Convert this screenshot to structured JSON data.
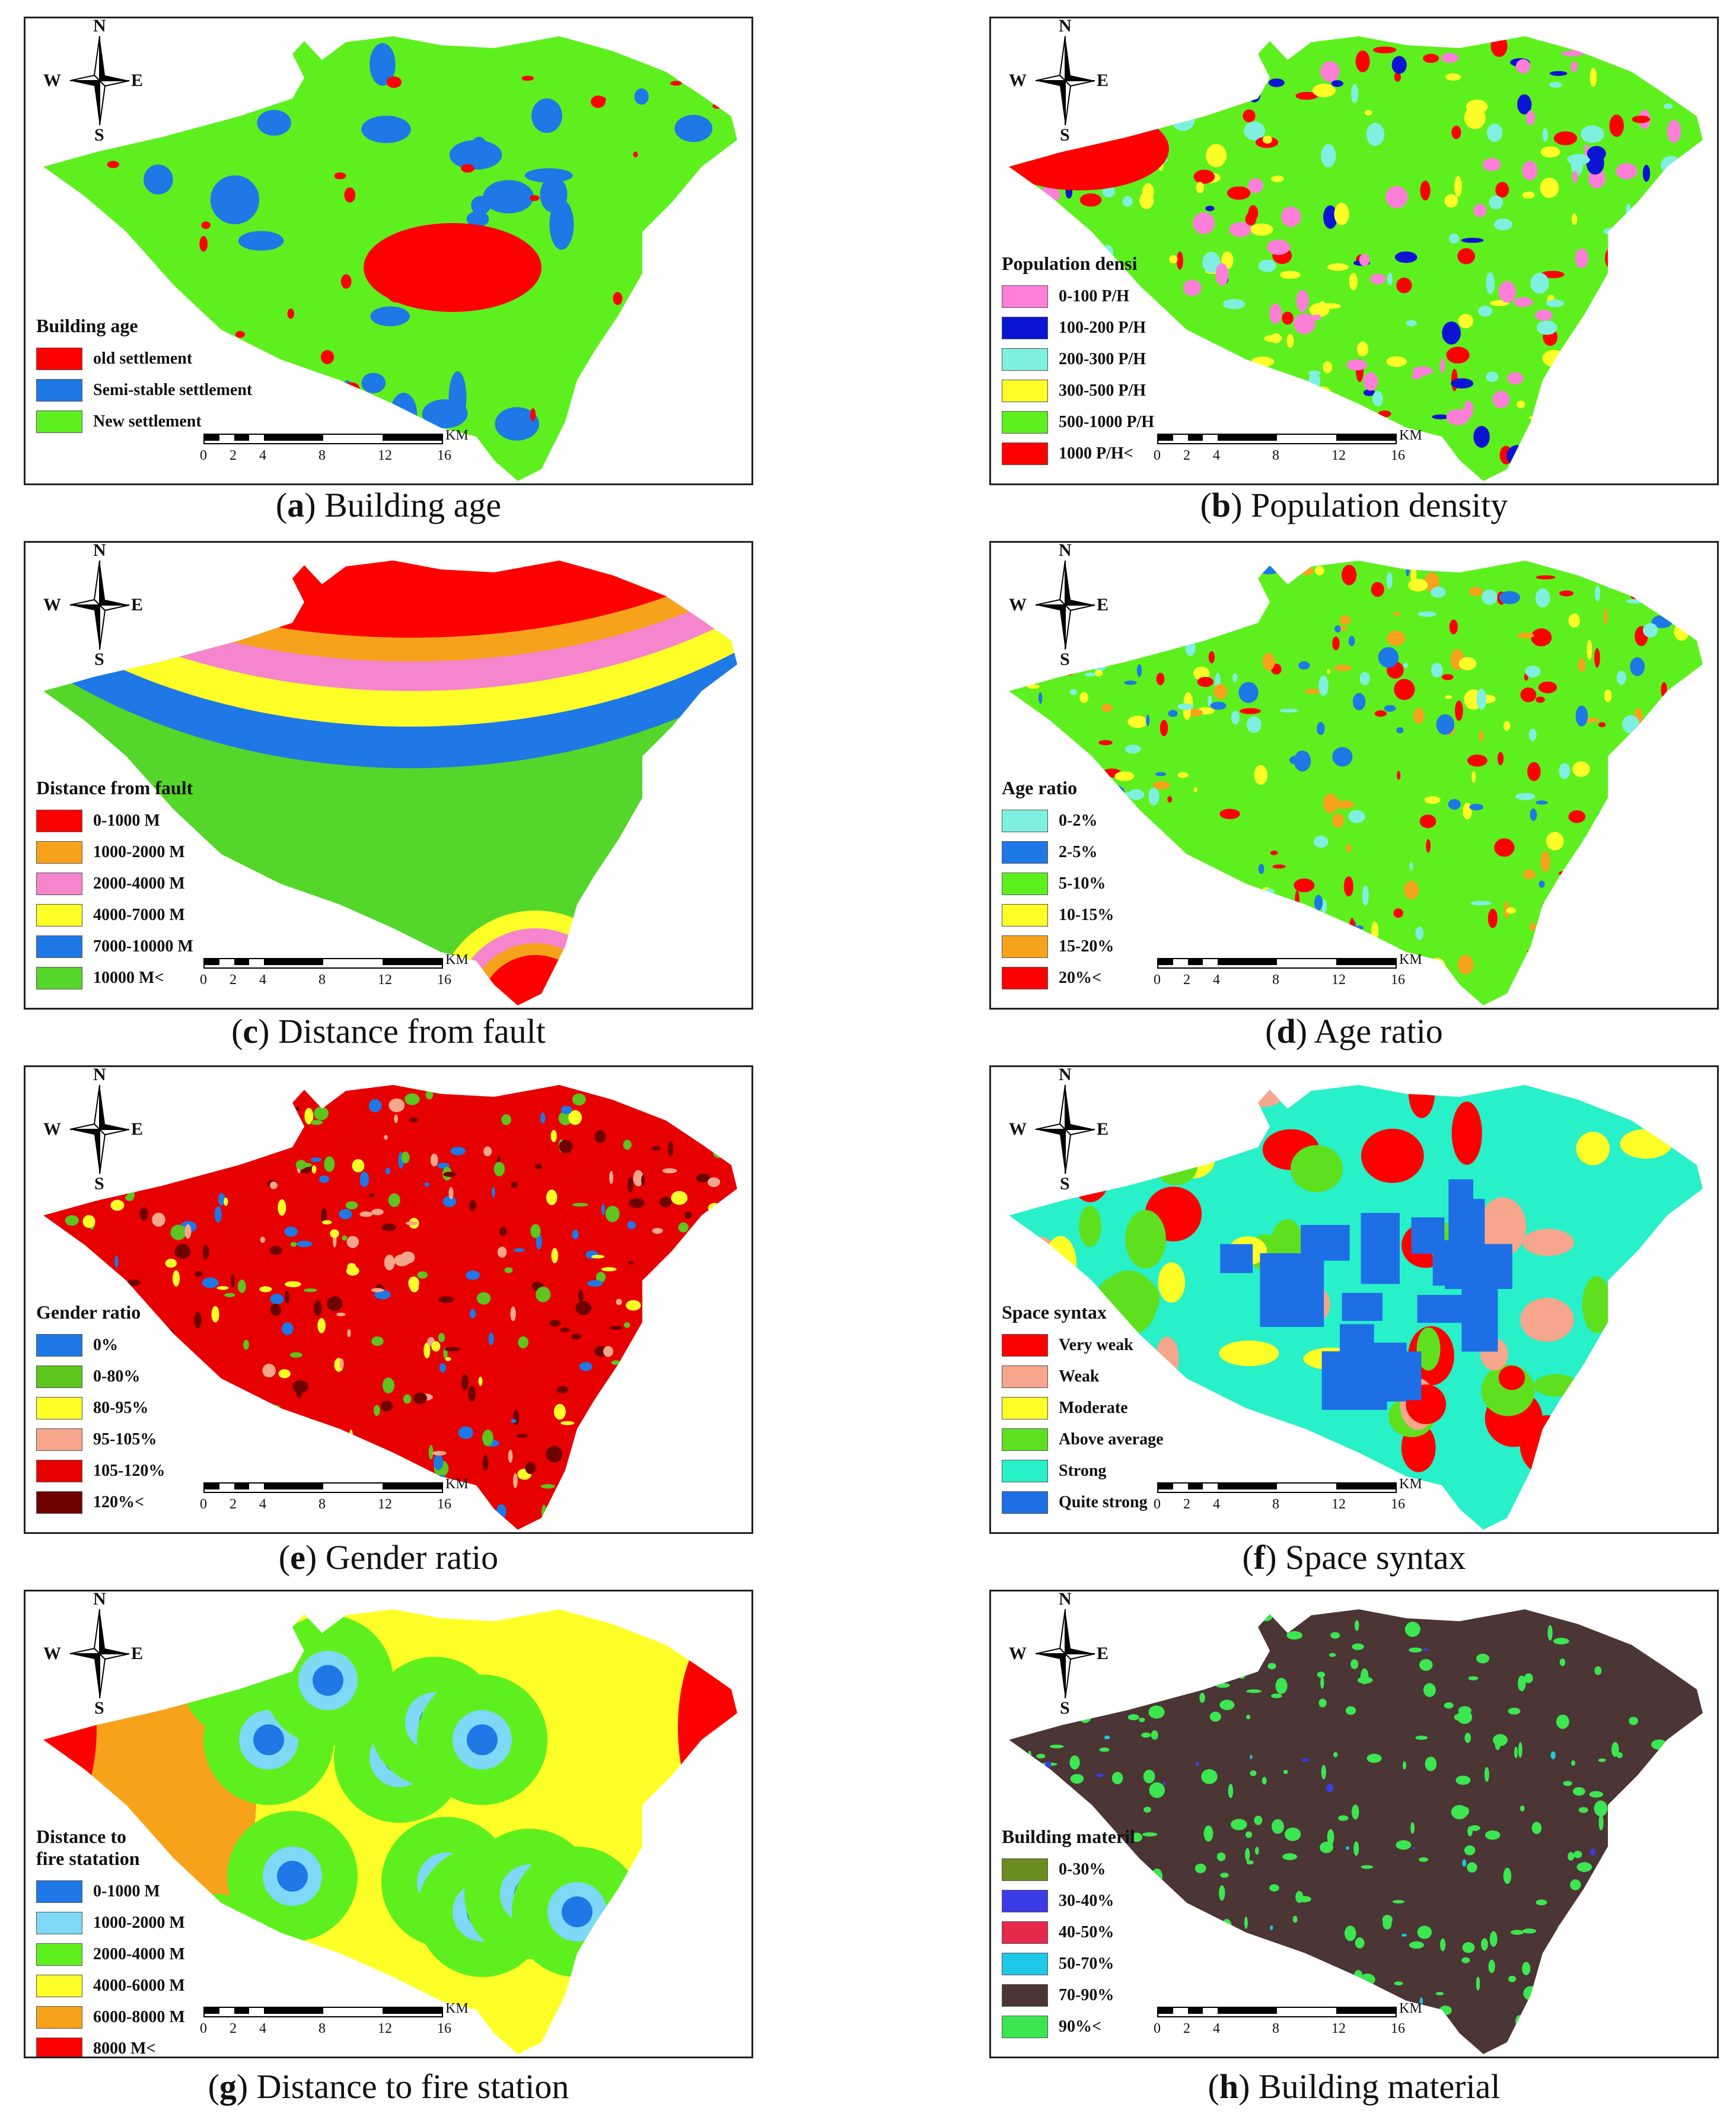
{
  "compass": {
    "n": "N",
    "s": "S",
    "w": "W",
    "e": "E"
  },
  "scale": {
    "ticks": [
      "0",
      "2",
      "4",
      "8",
      "12",
      "16"
    ],
    "unit": "KM"
  },
  "panels": [
    {
      "letter": "a",
      "caption": "Building age",
      "legend_title": "Building age",
      "legend": [
        {
          "label": "old settlement",
          "color": "#ff0000"
        },
        {
          "label": "Semi-stable settlement",
          "color": "#1e78e6"
        },
        {
          "label": "New settlement",
          "color": "#5ef01e"
        }
      ]
    },
    {
      "letter": "b",
      "caption": "Population density",
      "legend_title": "Population densi",
      "legend": [
        {
          "label": "0-100 P/H",
          "color": "#ff7fd8"
        },
        {
          "label": "100-200 P/H",
          "color": "#0a14d2"
        },
        {
          "label": "200-300 P/H",
          "color": "#7ff0e0"
        },
        {
          "label": "300-500 P/H",
          "color": "#ffff28"
        },
        {
          "label": "500-1000 P/H",
          "color": "#5ef01e"
        },
        {
          "label": "1000 P/H<",
          "color": "#ff0000"
        }
      ]
    },
    {
      "letter": "c",
      "caption": "Distance from fault",
      "legend_title": "Distance from fault",
      "legend": [
        {
          "label": "0-1000 M",
          "color": "#ff0000"
        },
        {
          "label": "1000-2000 M",
          "color": "#f7a21b"
        },
        {
          "label": "2000-4000 M",
          "color": "#f585cc"
        },
        {
          "label": "4000-7000 M",
          "color": "#ffff28"
        },
        {
          "label": "7000-10000 M",
          "color": "#1e78e6"
        },
        {
          "label": "10000 M<",
          "color": "#55d62a"
        }
      ]
    },
    {
      "letter": "d",
      "caption": "Age ratio",
      "legend_title": "Age ratio",
      "legend": [
        {
          "label": "0-2%",
          "color": "#7ff0e0"
        },
        {
          "label": "2-5%",
          "color": "#1e78e6"
        },
        {
          "label": "5-10%",
          "color": "#5ef01e"
        },
        {
          "label": "10-15%",
          "color": "#ffff28"
        },
        {
          "label": "15-20%",
          "color": "#f7a21b"
        },
        {
          "label": "20%<",
          "color": "#ff0000"
        }
      ]
    },
    {
      "letter": "e",
      "caption": "Gender ratio",
      "legend_title": "Gender ratio",
      "legend": [
        {
          "label": "0%",
          "color": "#1e78e6"
        },
        {
          "label": "0-80%",
          "color": "#5ec41e"
        },
        {
          "label": "80-95%",
          "color": "#ffff28"
        },
        {
          "label": "95-105%",
          "color": "#f5a68c"
        },
        {
          "label": "105-120%",
          "color": "#e60000"
        },
        {
          "label": "120%<",
          "color": "#6e0000"
        }
      ]
    },
    {
      "letter": "f",
      "caption": "Space syntax",
      "legend_title": "Space syntax",
      "legend": [
        {
          "label": "Very weak",
          "color": "#ff0000"
        },
        {
          "label": "Weak",
          "color": "#f5a68c"
        },
        {
          "label": "Moderate",
          "color": "#ffff28"
        },
        {
          "label": "Above average",
          "color": "#5ee01e"
        },
        {
          "label": "Strong",
          "color": "#28f0c8"
        },
        {
          "label": "Quite strong",
          "color": "#1e6ee6"
        }
      ]
    },
    {
      "letter": "g",
      "caption": "Distance to fire station",
      "legend_title": "Distance to\nfire statation",
      "legend": [
        {
          "label": "0-1000 M",
          "color": "#1e78e6"
        },
        {
          "label": "1000-2000 M",
          "color": "#7fd8f5"
        },
        {
          "label": "2000-4000 M",
          "color": "#5ef01e"
        },
        {
          "label": "4000-6000 M",
          "color": "#ffff28"
        },
        {
          "label": "6000-8000 M",
          "color": "#f7a21b"
        },
        {
          "label": "8000 M<",
          "color": "#ff0000"
        }
      ]
    },
    {
      "letter": "h",
      "caption": "Building material",
      "legend_title": "Building materil",
      "legend": [
        {
          "label": "0-30%",
          "color": "#6b8c1e"
        },
        {
          "label": "30-40%",
          "color": "#3c3ce6"
        },
        {
          "label": "40-50%",
          "color": "#e6284a"
        },
        {
          "label": "50-70%",
          "color": "#1ec8e6"
        },
        {
          "label": "70-90%",
          "color": "#4b3535"
        },
        {
          "label": "90%<",
          "color": "#3ce650"
        }
      ]
    }
  ]
}
